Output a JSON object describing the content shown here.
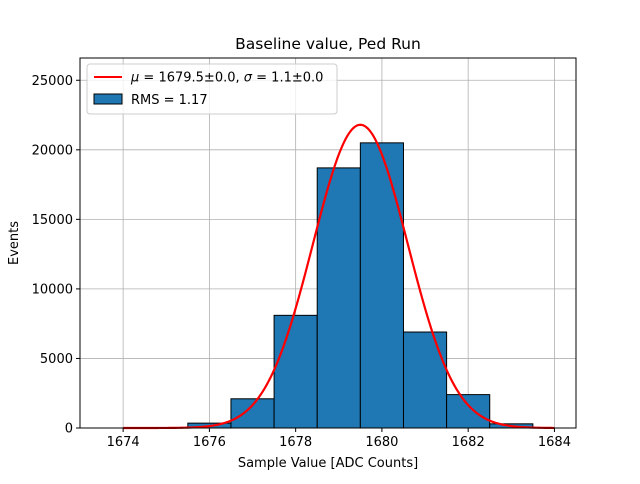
{
  "chart_data": {
    "type": "bar",
    "title": "Baseline value, Ped Run",
    "xlabel": "Sample Value [ADC Counts]",
    "ylabel": "Events",
    "xlim": [
      1673.0,
      1684.5
    ],
    "ylim": [
      0,
      26600
    ],
    "grid": true,
    "xticks": [
      1674,
      1676,
      1678,
      1680,
      1682,
      1684
    ],
    "yticks": [
      0,
      5000,
      10000,
      15000,
      20000,
      25000
    ],
    "histogram": {
      "name": "RMS = 1.17",
      "color": "#1f77b4",
      "edge_color": "#000000",
      "bins": [
        {
          "x0": 1673.5,
          "x1": 1674.5,
          "count": 0
        },
        {
          "x0": 1674.5,
          "x1": 1675.5,
          "count": 10
        },
        {
          "x0": 1675.5,
          "x1": 1676.5,
          "count": 350
        },
        {
          "x0": 1676.5,
          "x1": 1677.5,
          "count": 2100
        },
        {
          "x0": 1677.5,
          "x1": 1678.5,
          "count": 8100
        },
        {
          "x0": 1678.5,
          "x1": 1679.5,
          "count": 18700
        },
        {
          "x0": 1679.5,
          "x1": 1680.5,
          "count": 20500
        },
        {
          "x0": 1680.5,
          "x1": 1681.5,
          "count": 6900
        },
        {
          "x0": 1681.5,
          "x1": 1682.5,
          "count": 2400
        },
        {
          "x0": 1682.5,
          "x1": 1683.5,
          "count": 300
        }
      ]
    },
    "fit": {
      "name": "μ = 1679.5±0.0, σ = 1.1±0.0",
      "color": "#ff0000",
      "type": "gaussian",
      "amplitude": 21800,
      "mu": 1679.5,
      "sigma": 1.1,
      "x_range": [
        1674,
        1684
      ]
    },
    "legend": {
      "position": "top-left",
      "entries": [
        {
          "kind": "line",
          "label_prefix": "μ",
          "label_mid": " = 1679.5±0.0, ",
          "label_sigma": "σ",
          "label_suffix": " = 1.1±0.0",
          "color": "#ff0000"
        },
        {
          "kind": "patch",
          "label": "RMS = 1.17",
          "color": "#1f77b4"
        }
      ]
    }
  }
}
